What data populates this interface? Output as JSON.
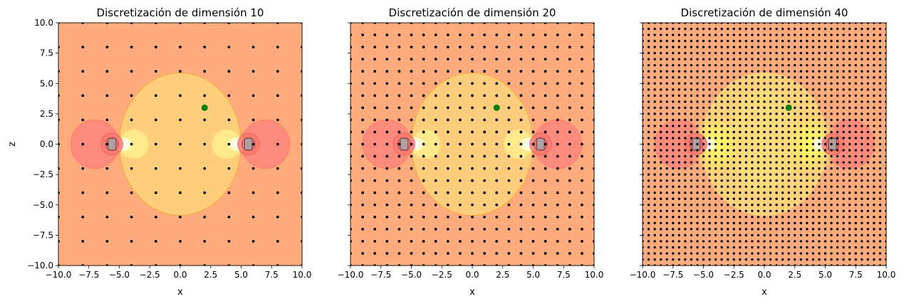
{
  "chart_data": [
    {
      "type": "contour",
      "title": "Discretización de dimensión 10",
      "xlabel": "x",
      "ylabel": "z",
      "xlim": [
        -10,
        10
      ],
      "ylim": [
        -10,
        10
      ],
      "xticks": [
        "−10.0",
        "−7.5",
        "−5.0",
        "−2.5",
        "0.0",
        "2.5",
        "5.0",
        "7.5",
        "10.0"
      ],
      "yticks": [
        "−10.0",
        "−7.5",
        "−5.0",
        "−2.5",
        "0.0",
        "2.5",
        "5.0",
        "7.5",
        "10.0"
      ],
      "grid_dimension": 10,
      "marker_point": [
        2,
        3
      ],
      "show_ytick_labels": true
    },
    {
      "type": "contour",
      "title": "Discretización de dimensión 20",
      "xlabel": "x",
      "ylabel": "",
      "xlim": [
        -10,
        10
      ],
      "ylim": [
        -10,
        10
      ],
      "xticks": [
        "−10.0",
        "−7.5",
        "−5.0",
        "−2.5",
        "0.0",
        "2.5",
        "5.0",
        "7.5",
        "10.0"
      ],
      "yticks": [],
      "grid_dimension": 20,
      "marker_point": [
        2,
        3
      ],
      "show_ytick_labels": false
    },
    {
      "type": "contour",
      "title": "Discretización de dimensión 40",
      "xlabel": "x",
      "ylabel": "",
      "xlim": [
        -10,
        10
      ],
      "ylim": [
        -10,
        10
      ],
      "xticks": [
        "−10.0",
        "−7.5",
        "−5.0",
        "−2.5",
        "0.0",
        "2.5",
        "5.0",
        "7.5",
        "10.0"
      ],
      "yticks": [],
      "grid_dimension": 40,
      "marker_point": [
        2,
        3
      ],
      "show_ytick_labels": false
    }
  ],
  "colors": {
    "background": "#ffab7c",
    "ellipse_fill": "#ffce7c",
    "ellipse_edge": "#f5a623",
    "side_lobe": "#ff8a7c",
    "inner_glow": "#ffe98a",
    "core": "#ffffff",
    "marker": "#008000",
    "dots": "#000000"
  }
}
